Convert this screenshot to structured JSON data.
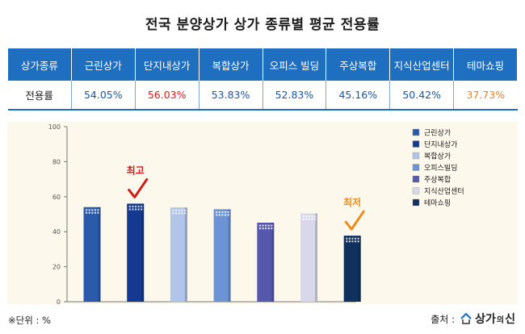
{
  "title": "전국 분양상가 상가 종류별 평균 전용률",
  "table": {
    "header_label": "상가종류",
    "row_label": "전용률",
    "columns": [
      {
        "name": "근린상가",
        "value": "54.05%"
      },
      {
        "name": "단지내상가",
        "value": "56.03%"
      },
      {
        "name": "복합상가",
        "value": "53.83%"
      },
      {
        "name": "오피스 빌딩",
        "value": "52.83%"
      },
      {
        "name": "주상복합",
        "value": "45.16%"
      },
      {
        "name": "지식산업센터",
        "value": "50.42%"
      },
      {
        "name": "테마쇼핑",
        "value": "37.73%"
      }
    ]
  },
  "chart_data": {
    "type": "bar",
    "categories": [
      "근린상가",
      "단지내상가",
      "복합상가",
      "오피스빌딩",
      "주상복합",
      "지식산업센터",
      "테마쇼핑"
    ],
    "values": [
      54.05,
      56.03,
      53.83,
      52.83,
      45.16,
      50.42,
      37.73
    ],
    "ylim": [
      0,
      100
    ],
    "yticks": [
      0,
      20,
      40,
      60,
      80,
      100
    ],
    "legend_position": "right",
    "annotations": [
      {
        "category": "단지내상가",
        "text": "최고"
      },
      {
        "category": "테마쇼핑",
        "text": "최저"
      }
    ],
    "colors": [
      "#2b5aab",
      "#133a8e",
      "#b0c5e8",
      "#6c93d4",
      "#5558ac",
      "#d8d8ea",
      "#10305e"
    ]
  },
  "footer": {
    "unit": "※단위 : %",
    "source_label": "출처 :",
    "brand_main": "상가",
    "brand_small": "의",
    "brand_end": "신"
  }
}
